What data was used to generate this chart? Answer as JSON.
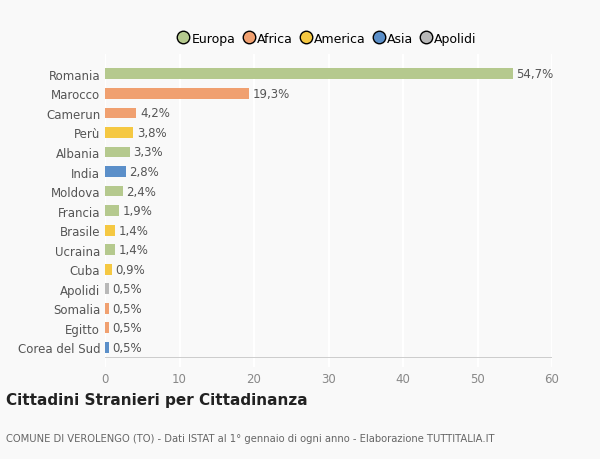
{
  "categories": [
    "Romania",
    "Marocco",
    "Camerun",
    "Perù",
    "Albania",
    "India",
    "Moldova",
    "Francia",
    "Brasile",
    "Ucraina",
    "Cuba",
    "Apolidi",
    "Somalia",
    "Egitto",
    "Corea del Sud"
  ],
  "values": [
    54.7,
    19.3,
    4.2,
    3.8,
    3.3,
    2.8,
    2.4,
    1.9,
    1.4,
    1.4,
    0.9,
    0.5,
    0.5,
    0.5,
    0.5
  ],
  "labels": [
    "54,7%",
    "19,3%",
    "4,2%",
    "3,8%",
    "3,3%",
    "2,8%",
    "2,4%",
    "1,9%",
    "1,4%",
    "1,4%",
    "0,9%",
    "0,5%",
    "0,5%",
    "0,5%",
    "0,5%"
  ],
  "colors": [
    "#b5c98e",
    "#f0a070",
    "#f0a070",
    "#f5c842",
    "#b5c98e",
    "#5b8fc9",
    "#b5c98e",
    "#b5c98e",
    "#f5c842",
    "#b5c98e",
    "#f5c842",
    "#b8b8b8",
    "#f0a070",
    "#f0a070",
    "#5b8fc9"
  ],
  "legend_labels": [
    "Europa",
    "Africa",
    "America",
    "Asia",
    "Apolidi"
  ],
  "legend_colors": [
    "#b5c98e",
    "#f0a070",
    "#f5c842",
    "#5b8fc9",
    "#b8b8b8"
  ],
  "title": "Cittadini Stranieri per Cittadinanza",
  "subtitle": "COMUNE DI VEROLENGO (TO) - Dati ISTAT al 1° gennaio di ogni anno - Elaborazione TUTTITALIA.IT",
  "xlim": [
    0,
    60
  ],
  "xticks": [
    0,
    10,
    20,
    30,
    40,
    50,
    60
  ],
  "background_color": "#f9f9f9",
  "grid_color": "#ffffff",
  "bar_height": 0.55,
  "label_fontsize": 8.5,
  "tick_fontsize": 8.5,
  "legend_fontsize": 9
}
